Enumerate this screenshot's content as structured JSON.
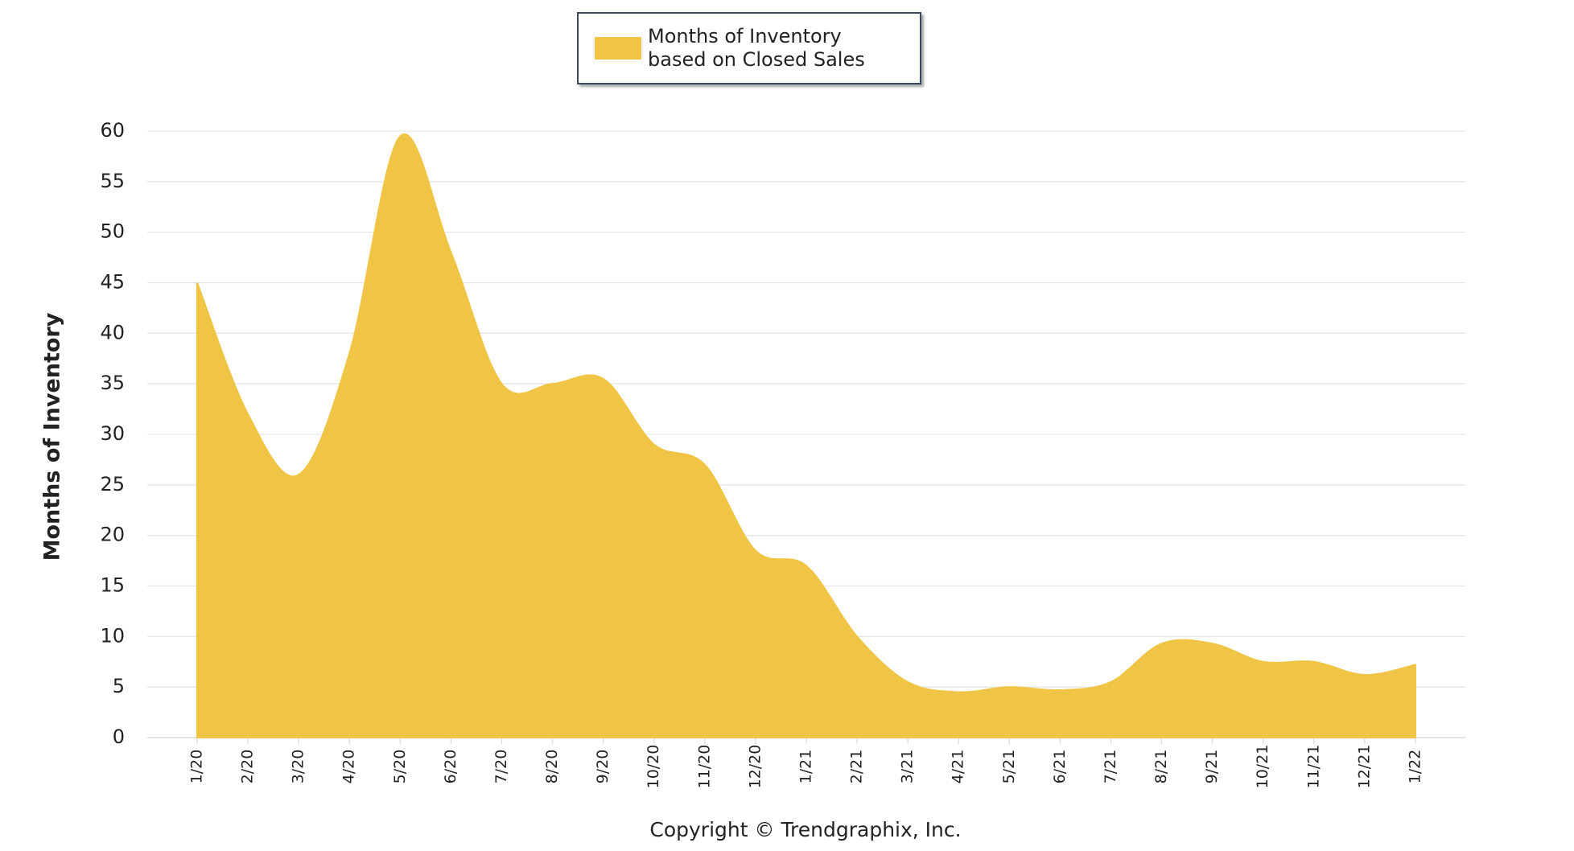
{
  "chart_data": {
    "type": "area",
    "y_label": "Months of Inventory",
    "note": "Copyright © Trendgraphix, Inc.",
    "categories": [
      "1/20",
      "2/20",
      "3/20",
      "4/20",
      "5/20",
      "6/20",
      "7/20",
      "8/20",
      "9/20",
      "10/20",
      "11/20",
      "12/20",
      "1/21",
      "2/21",
      "3/21",
      "4/21",
      "5/21",
      "6/21",
      "7/21",
      "8/21",
      "9/21",
      "10/21",
      "11/21",
      "12/21",
      "1/22"
    ],
    "series": [
      {
        "name": "Months of Inventory based on Closed Sales",
        "color": "#f0c445",
        "values": [
          45,
          32,
          26,
          38,
          59.5,
          48,
          35,
          35,
          35.5,
          29,
          27,
          18.5,
          17,
          10,
          5.5,
          4.5,
          5,
          4.7,
          5.5,
          9.3,
          9.3,
          7.5,
          7.5,
          6.2,
          7.2
        ]
      }
    ],
    "ylim": [
      0,
      60
    ],
    "yticks": [
      0,
      5,
      10,
      15,
      20,
      25,
      30,
      35,
      40,
      45,
      50,
      55,
      60
    ],
    "grid": true,
    "smooth": true
  }
}
